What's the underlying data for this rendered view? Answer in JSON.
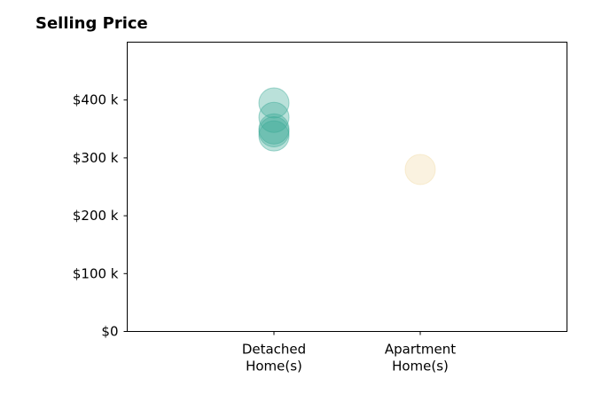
{
  "chart_data": {
    "type": "scatter",
    "title": "Selling Price",
    "xlabel": "",
    "ylabel": "",
    "categories": [
      {
        "line1": "Detached",
        "line2": "Home(s)"
      },
      {
        "line1": "Apartment",
        "line2": "Home(s)"
      }
    ],
    "series": [
      {
        "category_index": 0,
        "color": "#3aa896",
        "values": [
          395000,
          370000,
          350000,
          345000,
          338000
        ]
      },
      {
        "category_index": 1,
        "color": "#f2dba6",
        "values": [
          280000
        ]
      }
    ],
    "ylim": [
      0,
      500000
    ],
    "yticks": [
      {
        "value": 0,
        "label": "$0"
      },
      {
        "value": 100000,
        "label": "$100 k"
      },
      {
        "value": 200000,
        "label": "$200 k"
      },
      {
        "value": 300000,
        "label": "$300 k"
      },
      {
        "value": 400000,
        "label": "$400 k"
      }
    ],
    "grid": false,
    "marker_opacity": 0.35
  }
}
